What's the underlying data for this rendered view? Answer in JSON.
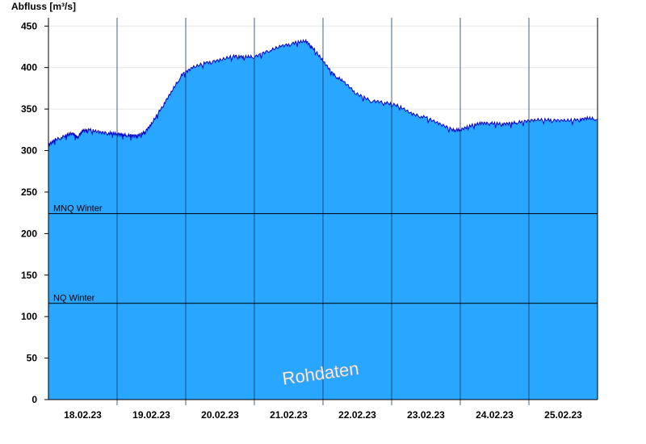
{
  "chart_data": {
    "type": "area",
    "ylabel": "Abfluss [m³/s]",
    "ylim": [
      0,
      460
    ],
    "yticks": [
      0,
      50,
      100,
      150,
      200,
      250,
      300,
      350,
      400,
      450
    ],
    "xticks": [
      "18.02.23",
      "19.02.23",
      "20.02.23",
      "21.02.23",
      "22.02.23",
      "23.02.23",
      "24.02.23",
      "25.02.23"
    ],
    "x_range_days": [
      0,
      8
    ],
    "grid": true,
    "fill_color": "#29a6ff",
    "line_color": "#0000cc",
    "watermark": "Rohdaten",
    "reference_lines": [
      {
        "label": "MNQ Winter",
        "value": 224
      },
      {
        "label": "NQ Winter",
        "value": 116
      }
    ],
    "series": [
      {
        "x": [
          0,
          0.1,
          0.25,
          0.35,
          0.42,
          0.5,
          0.6,
          0.75,
          0.9,
          1.0,
          1.1,
          1.2,
          1.3,
          1.4,
          1.5,
          1.65,
          1.8,
          1.95,
          2.1,
          2.3,
          2.5,
          2.7,
          2.85,
          3.0,
          3.2,
          3.4,
          3.6,
          3.75,
          3.85,
          4.0,
          4.15,
          4.3,
          4.5,
          4.7,
          4.9,
          5.1,
          5.3,
          5.5,
          5.7,
          5.9,
          6.0,
          6.15,
          6.3,
          6.45,
          6.6,
          6.75,
          6.9,
          7.1,
          7.3,
          7.5,
          7.7,
          7.85,
          8.0
        ],
        "y": [
          307,
          313,
          318,
          321,
          316,
          324,
          325,
          322,
          321,
          320,
          319,
          318,
          318,
          322,
          332,
          352,
          372,
          392,
          400,
          406,
          409,
          414,
          413,
          413,
          420,
          426,
          430,
          432,
          424,
          408,
          392,
          383,
          368,
          360,
          358,
          354,
          344,
          340,
          332,
          325,
          325,
          330,
          333,
          333,
          332,
          333,
          335,
          337,
          337,
          336,
          337,
          339,
          338
        ]
      }
    ]
  }
}
